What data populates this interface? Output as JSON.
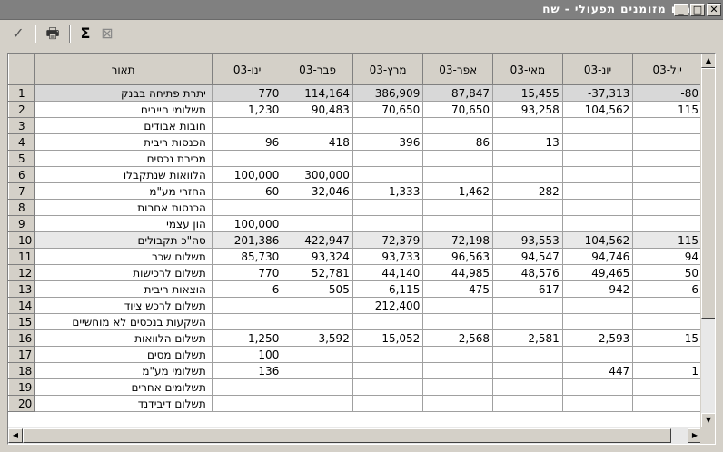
{
  "window": {
    "title": "תזרים מזומנים תפעולי - שח",
    "app_icon_label": "BP",
    "minimize_glyph": "_",
    "maximize_glyph": "□",
    "close_glyph": "✕"
  },
  "toolbar": {
    "confirm_icon": "check-icon",
    "confirm_glyph": "✓",
    "print_icon": "printer-icon",
    "print_glyph": "🖶",
    "sum_icon": "sigma-icon",
    "sum_glyph": "Σ",
    "excel_icon": "excel-icon",
    "excel_glyph": "⊠"
  },
  "grid": {
    "description_header": "תאור",
    "months": [
      "ינו-03",
      "פבר-03",
      "מרץ-03",
      "אפר-03",
      "מאי-03",
      "יונ-03",
      "יול-03"
    ],
    "rows": [
      {
        "n": "1",
        "label": "יתרת פתיחה בבנק",
        "values": [
          "770",
          "114,164",
          "386,909",
          "87,847",
          "15,455",
          "-37,313",
          "-80"
        ],
        "style": "sel"
      },
      {
        "n": "2",
        "label": "תשלומי חייבים",
        "values": [
          "1,230",
          "90,483",
          "70,650",
          "70,650",
          "93,258",
          "104,562",
          "115"
        ],
        "style": ""
      },
      {
        "n": "3",
        "label": "חובות אבודים",
        "values": [
          "",
          "",
          "",
          "",
          "",
          "",
          ""
        ],
        "style": ""
      },
      {
        "n": "4",
        "label": "הכנסות ריבית",
        "values": [
          "96",
          "418",
          "396",
          "86",
          "13",
          "",
          ""
        ],
        "style": ""
      },
      {
        "n": "5",
        "label": "מכירת נכסים",
        "values": [
          "",
          "",
          "",
          "",
          "",
          "",
          ""
        ],
        "style": ""
      },
      {
        "n": "6",
        "label": "הלוואות שנתקבלו",
        "values": [
          "100,000",
          "300,000",
          "",
          "",
          "",
          "",
          ""
        ],
        "style": ""
      },
      {
        "n": "7",
        "label": "החזרי מע\"מ",
        "values": [
          "60",
          "32,046",
          "1,333",
          "1,462",
          "282",
          "",
          ""
        ],
        "style": ""
      },
      {
        "n": "8",
        "label": "הכנסות אחרות",
        "values": [
          "",
          "",
          "",
          "",
          "",
          "",
          ""
        ],
        "style": ""
      },
      {
        "n": "9",
        "label": "הון עצמי",
        "values": [
          "100,000",
          "",
          "",
          "",
          "",
          "",
          ""
        ],
        "style": ""
      },
      {
        "n": "10",
        "label": "סה\"כ תקבולים",
        "values": [
          "201,386",
          "422,947",
          "72,379",
          "72,198",
          "93,553",
          "104,562",
          "115"
        ],
        "style": "hl"
      },
      {
        "n": "11",
        "label": "תשלום שכר",
        "values": [
          "85,730",
          "93,324",
          "93,733",
          "96,563",
          "94,547",
          "94,746",
          "94"
        ],
        "style": ""
      },
      {
        "n": "12",
        "label": "תשלום לרכישות",
        "values": [
          "770",
          "52,781",
          "44,140",
          "44,985",
          "48,576",
          "49,465",
          "50"
        ],
        "style": ""
      },
      {
        "n": "13",
        "label": "הוצאות ריבית",
        "values": [
          "6",
          "505",
          "6,115",
          "475",
          "617",
          "942",
          "6"
        ],
        "style": ""
      },
      {
        "n": "14",
        "label": "תשלום לרכש ציוד",
        "values": [
          "",
          "",
          "212,400",
          "",
          "",
          "",
          ""
        ],
        "style": ""
      },
      {
        "n": "15",
        "label": "השקעות בנכסים לא מוחשיים",
        "values": [
          "",
          "",
          "",
          "",
          "",
          "",
          ""
        ],
        "style": ""
      },
      {
        "n": "16",
        "label": "תשלום הלוואות",
        "values": [
          "1,250",
          "3,592",
          "15,052",
          "2,568",
          "2,581",
          "2,593",
          "15"
        ],
        "style": ""
      },
      {
        "n": "17",
        "label": "תשלום מסים",
        "values": [
          "100",
          "",
          "",
          "",
          "",
          "",
          ""
        ],
        "style": ""
      },
      {
        "n": "18",
        "label": "תשלומי מע\"מ",
        "values": [
          "136",
          "",
          "",
          "",
          "",
          "447",
          "1"
        ],
        "style": ""
      },
      {
        "n": "19",
        "label": "תשלומים אחרים",
        "values": [
          "",
          "",
          "",
          "",
          "",
          "",
          ""
        ],
        "style": ""
      },
      {
        "n": "20",
        "label": "תשלום דיבידנד",
        "values": [
          "",
          "",
          "",
          "",
          "",
          "",
          ""
        ],
        "style": ""
      }
    ]
  }
}
